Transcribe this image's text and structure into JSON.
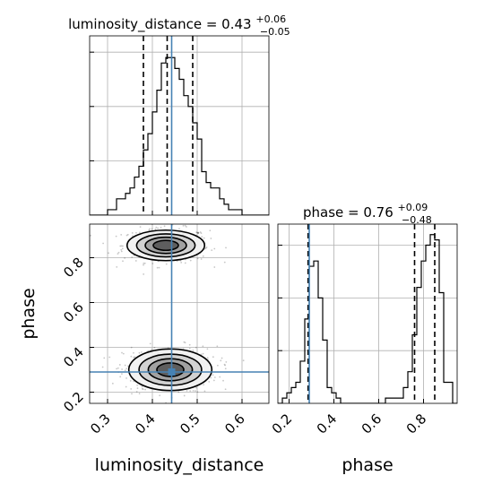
{
  "chart_data": {
    "type": "corner",
    "grid": true,
    "truth_color": "#4682b4",
    "variables": [
      {
        "name": "luminosity_distance",
        "axis_label": "luminosity_distance",
        "title_main": "luminosity_distance = 0.43",
        "title_sup": "+0.06",
        "title_sub": "−0.05",
        "range": [
          0.26,
          0.66
        ],
        "ticks": [
          0.3,
          0.4,
          0.5,
          0.6
        ],
        "tick_labels": [
          "0.3",
          "0.4",
          "0.5",
          "0.6"
        ],
        "quantiles": [
          0.38,
          0.433,
          0.49
        ],
        "truth": 0.443,
        "histogram": {
          "bin_edges": [
            0.26,
            0.27,
            0.28,
            0.29,
            0.3,
            0.31,
            0.32,
            0.33,
            0.34,
            0.35,
            0.36,
            0.37,
            0.38,
            0.39,
            0.4,
            0.41,
            0.42,
            0.43,
            0.44,
            0.45,
            0.46,
            0.47,
            0.48,
            0.49,
            0.5,
            0.51,
            0.52,
            0.53,
            0.54,
            0.55,
            0.56,
            0.57,
            0.58,
            0.59,
            0.6,
            0.61,
            0.62,
            0.63,
            0.64,
            0.65,
            0.66
          ],
          "counts": [
            0,
            0,
            0,
            0,
            1,
            1,
            3,
            3,
            4,
            5,
            7,
            9,
            12,
            15,
            19,
            23,
            28,
            29,
            29,
            27,
            25,
            22,
            20,
            17,
            14,
            8,
            6,
            5,
            5,
            3,
            2,
            1,
            1,
            1,
            0,
            0,
            0,
            0,
            0,
            0
          ]
        },
        "hist_yticks": [
          10,
          20,
          30
        ],
        "hist_ymax": 33
      },
      {
        "name": "phase",
        "axis_label": "phase",
        "title_main": "phase = 0.76",
        "title_sup": "+0.09",
        "title_sub": "−0.48",
        "range": [
          0.15,
          0.95
        ],
        "ticks": [
          0.2,
          0.4,
          0.6,
          0.8
        ],
        "tick_labels": [
          "0.2",
          "0.4",
          "0.6",
          "0.8"
        ],
        "quantiles": [
          0.285,
          0.76,
          0.85
        ],
        "truth": 0.29,
        "histogram": {
          "bin_edges": [
            0.15,
            0.17,
            0.19,
            0.21,
            0.23,
            0.25,
            0.27,
            0.29,
            0.31,
            0.33,
            0.35,
            0.37,
            0.39,
            0.41,
            0.43,
            0.45,
            0.47,
            0.49,
            0.51,
            0.53,
            0.55,
            0.57,
            0.59,
            0.61,
            0.63,
            0.65,
            0.67,
            0.69,
            0.71,
            0.73,
            0.75,
            0.77,
            0.79,
            0.81,
            0.83,
            0.85,
            0.87,
            0.89,
            0.91,
            0.93,
            0.95
          ],
          "counts": [
            0,
            1,
            2,
            3,
            4,
            8,
            16,
            26,
            27,
            20,
            12,
            3,
            2,
            1,
            0,
            0,
            0,
            0,
            0,
            0,
            0,
            0,
            0,
            0,
            1,
            1,
            1,
            1,
            3,
            6,
            13,
            22,
            27,
            30,
            32,
            31,
            21,
            4,
            4,
            0
          ]
        },
        "hist_yticks": [
          10,
          20,
          30
        ],
        "hist_ymax": 34
      }
    ],
    "joint": {
      "x": "luminosity_distance",
      "y": "phase",
      "modes": [
        {
          "cx": 0.43,
          "cy": 0.855,
          "sx": 0.042,
          "sy": 0.033
        },
        {
          "cx": 0.44,
          "cy": 0.3,
          "sx": 0.045,
          "sy": 0.045
        }
      ],
      "contour_levels": [
        0.12,
        0.3,
        0.55,
        0.8
      ],
      "contour_fills": [
        "#f1f1f1",
        "#cfcfcf",
        "#9e9e9e",
        "#5b5b5b"
      ],
      "truth_point": [
        0.443,
        0.29
      ],
      "scatter_count": 900
    }
  }
}
